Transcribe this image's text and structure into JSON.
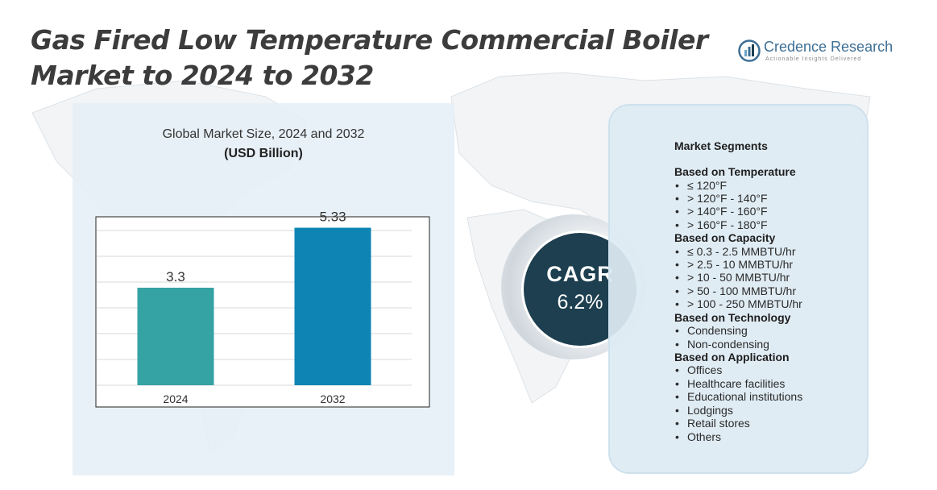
{
  "page": {
    "title": "Gas Fired Low Temperature Commercial Boiler Market to 2024 to 2032"
  },
  "logo": {
    "name": "Credence Research",
    "tagline": "Actionable Insights Delivered",
    "icon": "bar-chart-logo-icon"
  },
  "chart_data": {
    "type": "bar",
    "title": "Global Market Size, 2024 and 2032",
    "unit_label": "(USD Billion)",
    "categories": [
      "2024",
      "2032"
    ],
    "values": [
      3.3,
      5.33
    ],
    "value_labels": [
      "3.3",
      "5.33"
    ],
    "ylim": [
      0,
      7
    ],
    "gridlines": true,
    "colors": [
      "#35a2a4",
      "#0e84b4"
    ]
  },
  "cagr": {
    "label": "CAGR",
    "value": "6.2%"
  },
  "segments": {
    "heading": "Market Segments",
    "groups": [
      {
        "title": "Based on Temperature",
        "items": [
          "≤ 120°F",
          "> 120°F - 140°F",
          "> 140°F - 160°F",
          "> 160°F - 180°F"
        ]
      },
      {
        "title": "Based on Capacity",
        "items": [
          "≤ 0.3 - 2.5 MMBTU/hr",
          "> 2.5 - 10 MMBTU/hr",
          "> 10 - 50 MMBTU/hr",
          "> 50 - 100 MMBTU/hr",
          "> 100 - 250 MMBTU/hr"
        ]
      },
      {
        "title": "Based on Technology",
        "items": [
          "Condensing",
          "Non-condensing"
        ]
      },
      {
        "title": "Based on Application",
        "items": [
          "Offices",
          "Healthcare facilities",
          "Educational institutions",
          "Lodgings",
          "Retail stores",
          "Others"
        ]
      }
    ]
  },
  "colors": {
    "title": "#3c3c3c",
    "cagr_circle": "#1d3f4f",
    "panel_bg": "#e5eff6",
    "brand": "#3d6f95"
  }
}
